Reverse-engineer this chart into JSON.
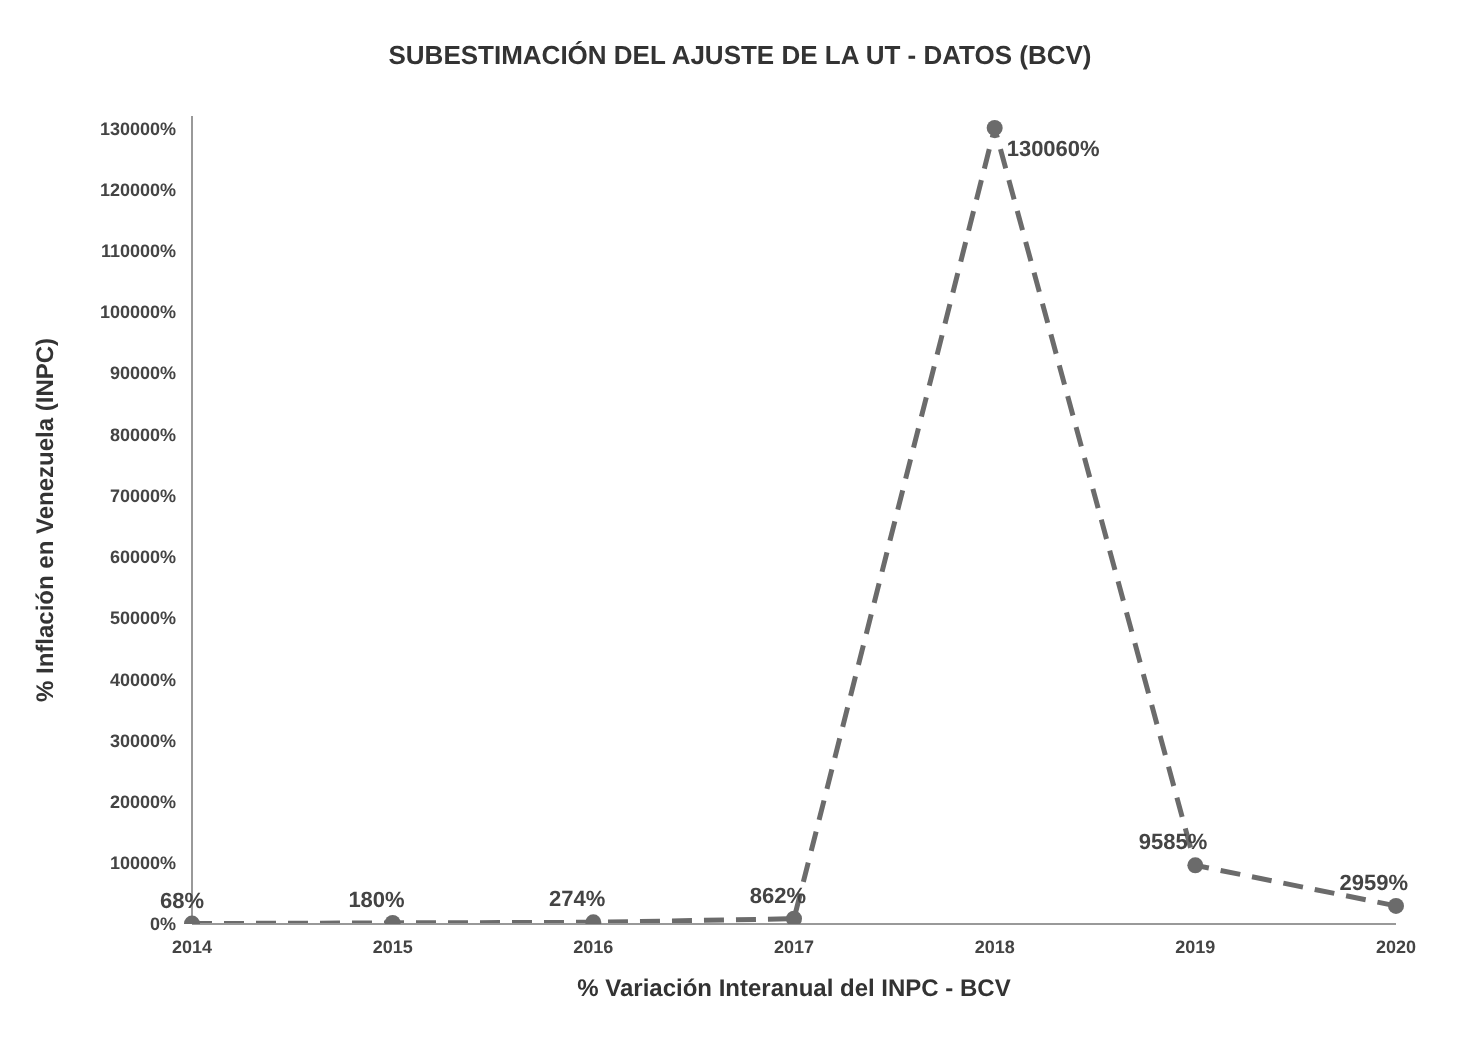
{
  "chart_data": {
    "type": "line",
    "title": "SUBESTIMACIÓN DEL AJUSTE DE LA UT - DATOS (BCV)",
    "xlabel": "% Variación Interanual del INPC - BCV",
    "ylabel": "% Inflación  en Venezuela (INPC)",
    "categories": [
      "2014",
      "2015",
      "2016",
      "2017",
      "2018",
      "2019",
      "2020"
    ],
    "series": [
      {
        "color": "#6b6b6b",
        "values": [
          68,
          180,
          274,
          862,
          130060,
          9585,
          2959
        ],
        "value_labels": [
          "68%",
          "180%",
          "274%",
          "862%",
          "130060%",
          "9585%",
          "2959%"
        ]
      }
    ],
    "ylim": [
      0,
      132000
    ],
    "yticks": [
      {
        "value": 0,
        "label": "0%"
      },
      {
        "value": 10000,
        "label": "10000%"
      },
      {
        "value": 20000,
        "label": "20000%"
      },
      {
        "value": 30000,
        "label": "30000%"
      },
      {
        "value": 40000,
        "label": "40000%"
      },
      {
        "value": 50000,
        "label": "50000%"
      },
      {
        "value": 60000,
        "label": "60000%"
      },
      {
        "value": 70000,
        "label": "70000%"
      },
      {
        "value": 80000,
        "label": "80000%"
      },
      {
        "value": 90000,
        "label": "90000%"
      },
      {
        "value": 100000,
        "label": "100000%"
      },
      {
        "value": 110000,
        "label": "110000%"
      },
      {
        "value": 120000,
        "label": "120000%"
      },
      {
        "value": 130000,
        "label": "130000%"
      }
    ],
    "marker": "circle",
    "line_style": "dashed",
    "grid": false
  }
}
